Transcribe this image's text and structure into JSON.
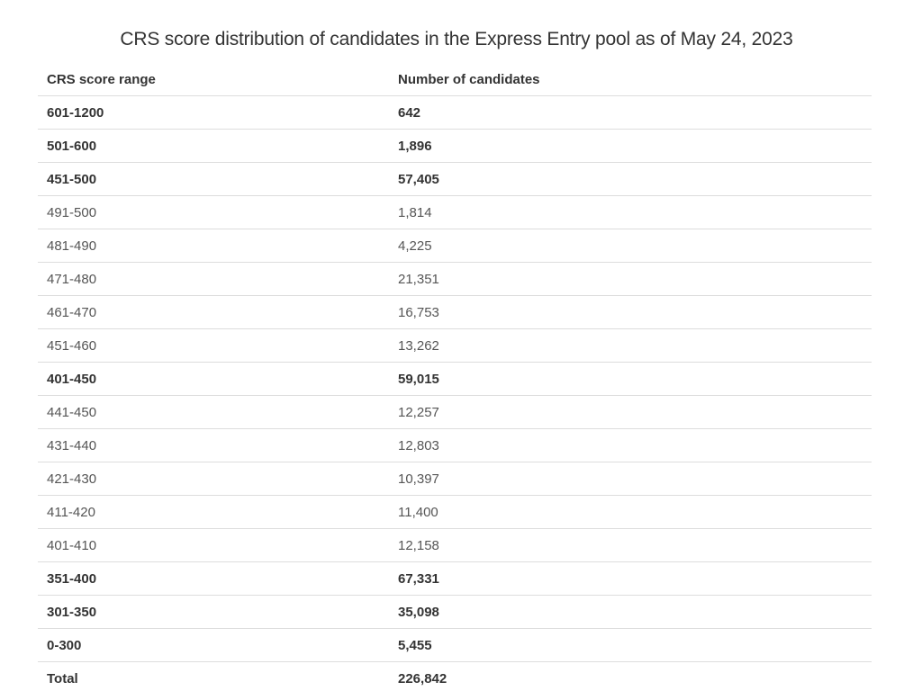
{
  "caption": "CRS score distribution of candidates in the Express Entry pool as of May 24, 2023",
  "table": {
    "headers": [
      "CRS score range",
      "Number of candidates"
    ],
    "rows": [
      {
        "range": "601-1200",
        "count": "642",
        "bold": true
      },
      {
        "range": "501-600",
        "count": "1,896",
        "bold": true
      },
      {
        "range": "451-500",
        "count": "57,405",
        "bold": true
      },
      {
        "range": "491-500",
        "count": "1,814",
        "bold": false
      },
      {
        "range": "481-490",
        "count": "4,225",
        "bold": false
      },
      {
        "range": "471-480",
        "count": "21,351",
        "bold": false
      },
      {
        "range": "461-470",
        "count": "16,753",
        "bold": false
      },
      {
        "range": "451-460",
        "count": "13,262",
        "bold": false
      },
      {
        "range": "401-450",
        "count": "59,015",
        "bold": true
      },
      {
        "range": "441-450",
        "count": "12,257",
        "bold": false
      },
      {
        "range": "431-440",
        "count": "12,803",
        "bold": false
      },
      {
        "range": "421-430",
        "count": "10,397",
        "bold": false
      },
      {
        "range": "411-420",
        "count": "11,400",
        "bold": false
      },
      {
        "range": "401-410",
        "count": "12,158",
        "bold": false
      },
      {
        "range": "351-400",
        "count": "67,331",
        "bold": true
      },
      {
        "range": "301-350",
        "count": "35,098",
        "bold": true
      },
      {
        "range": "0-300",
        "count": "5,455",
        "bold": true
      },
      {
        "range": "Total",
        "count": "226,842",
        "bold": true
      }
    ]
  },
  "colors": {
    "text": "#333333",
    "row_border": "#dddddd",
    "background": "#ffffff"
  }
}
